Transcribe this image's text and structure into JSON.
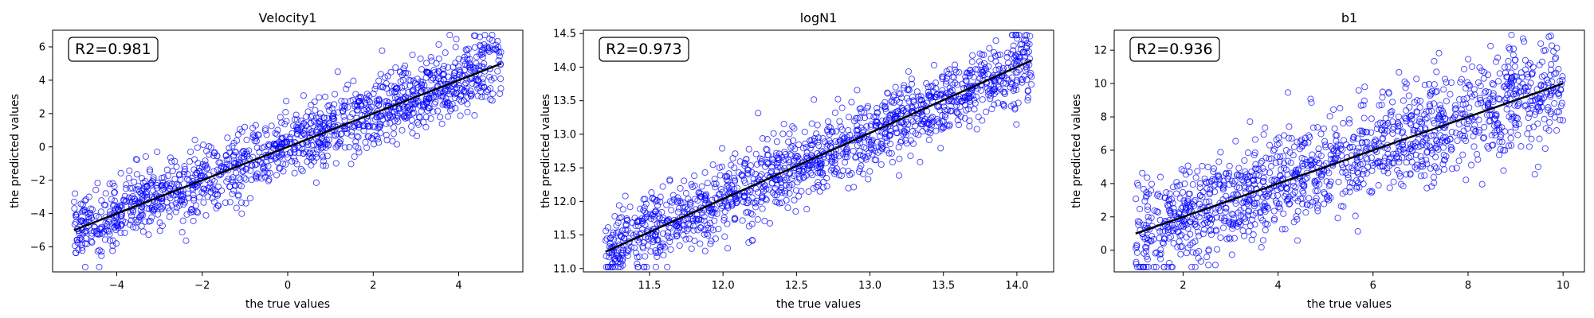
{
  "colors": {
    "marker": "#0000ff",
    "fit_line": "#000000",
    "axes": "#000000",
    "background": "#ffffff"
  },
  "chart_data": [
    {
      "type": "scatter",
      "title": "Velocity1",
      "xlabel": "the true values",
      "ylabel": "the predicted values",
      "xlim": [
        -5.5,
        5.5
      ],
      "ylim": [
        -7.5,
        7.0
      ],
      "xticks": [
        -4,
        -2,
        0,
        2,
        4
      ],
      "yticks": [
        -6,
        -4,
        -2,
        0,
        2,
        4,
        6
      ],
      "annotation": "R2=0.981",
      "marker": "hollow-circle",
      "fit_line": {
        "x": [
          -5,
          5
        ],
        "y": [
          -5.0,
          5.0
        ]
      },
      "scatter": {
        "x_range": [
          -5,
          5
        ],
        "slope": 1.0,
        "intercept": 0.0,
        "noise_sd": 1.05,
        "count": 1400
      }
    },
    {
      "type": "scatter",
      "title": "logN1",
      "xlabel": "the true values",
      "ylabel": "the predicted values",
      "xlim": [
        11.05,
        14.25
      ],
      "ylim": [
        10.95,
        14.55
      ],
      "xticks": [
        11.5,
        12.0,
        12.5,
        13.0,
        13.5,
        14.0
      ],
      "yticks": [
        11.0,
        11.5,
        12.0,
        12.5,
        13.0,
        13.5,
        14.0,
        14.5
      ],
      "annotation": "R2=0.973",
      "marker": "hollow-circle",
      "fit_line": {
        "x": [
          11.2,
          14.1
        ],
        "y": [
          11.25,
          14.1
        ]
      },
      "scatter": {
        "x_range": [
          11.2,
          14.1
        ],
        "slope": 0.983,
        "intercept": 0.24,
        "noise_sd": 0.28,
        "count": 1400
      }
    },
    {
      "type": "scatter",
      "title": "b1",
      "xlabel": "the true values",
      "ylabel": "the predicted values",
      "xlim": [
        0.55,
        10.45
      ],
      "ylim": [
        -1.3,
        13.2
      ],
      "xticks": [
        2,
        4,
        6,
        8,
        10
      ],
      "yticks": [
        0,
        2,
        4,
        6,
        8,
        10,
        12
      ],
      "annotation": "R2=0.936",
      "marker": "hollow-circle",
      "fit_line": {
        "x": [
          1,
          10
        ],
        "y": [
          1.0,
          10.0
        ]
      },
      "scatter": {
        "x_range": [
          1,
          10
        ],
        "slope": 1.0,
        "intercept": 0.0,
        "noise_sd": 1.55,
        "count": 1400
      }
    }
  ]
}
